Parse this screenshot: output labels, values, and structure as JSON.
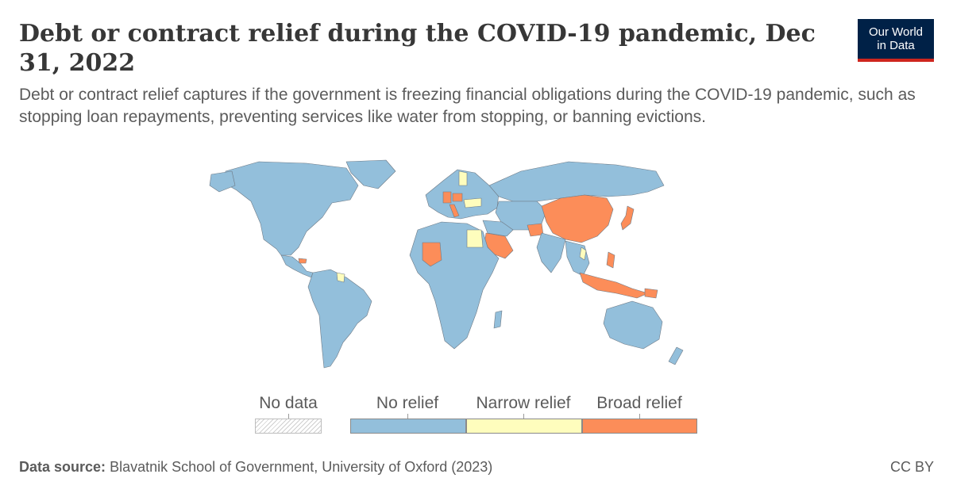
{
  "header": {
    "title": "Debt or contract relief during the COVID-19 pandemic, Dec 31, 2022",
    "subtitle": "Debt or contract relief captures if the government is freezing financial obligations during the COVID-19 pandemic, such as stopping loan repayments, preventing services like water from stopping, or banning evictions."
  },
  "logo": {
    "line1": "Our World",
    "line2": "in Data"
  },
  "colors": {
    "no_relief": "#93bfdb",
    "narrow_relief": "#fefdbd",
    "broad_relief": "#fc8d59",
    "background": "#ffffff",
    "logo_bg": "#002147",
    "logo_accent": "#ce261e"
  },
  "legend": {
    "no_data": "No data",
    "items": [
      {
        "label": "No relief",
        "color": "#93bfdb"
      },
      {
        "label": "Narrow relief",
        "color": "#fefdbd"
      },
      {
        "label": "Broad relief",
        "color": "#fc8d59"
      }
    ]
  },
  "map": {
    "narrow_relief": [
      "Egypt",
      "Finland",
      "Ukraine",
      "Romania",
      "Laos",
      "Guyana",
      "Suriname"
    ],
    "broad_relief": [
      "China",
      "Japan",
      "Afghanistan",
      "Saudi Arabia",
      "Mali",
      "Indonesia",
      "Philippines",
      "Honduras",
      "Germany",
      "Poland",
      "Italy",
      "Papua New Guinea"
    ]
  },
  "footer": {
    "source_label": "Data source:",
    "source_text": "Blavatnik School of Government, University of Oxford (2023)",
    "license": "CC BY"
  }
}
